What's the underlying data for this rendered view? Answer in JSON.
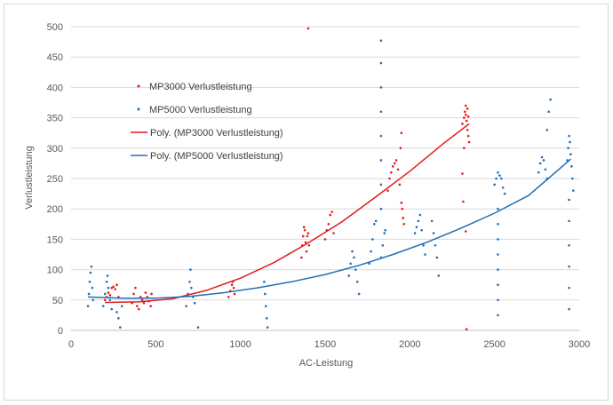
{
  "chart_data": {
    "type": "scatter",
    "title": "",
    "xlabel": "AC-Leistung",
    "ylabel": "Verlustleistung",
    "xlim": [
      0,
      3000
    ],
    "ylim": [
      0,
      500
    ],
    "xticks": [
      0,
      500,
      1000,
      1500,
      2000,
      2500,
      3000
    ],
    "yticks": [
      0,
      50,
      100,
      150,
      200,
      250,
      300,
      350,
      400,
      450,
      500
    ],
    "grid": "horizontal",
    "legend_position": "upper-left",
    "series": [
      {
        "name": "MP3000 Verlustleistung",
        "kind": "points",
        "color": "#e31a1c",
        "points": [
          [
            200,
            50
          ],
          [
            210,
            55
          ],
          [
            220,
            62
          ],
          [
            230,
            58
          ],
          [
            240,
            70
          ],
          [
            250,
            72
          ],
          [
            260,
            68
          ],
          [
            270,
            75
          ],
          [
            280,
            55
          ],
          [
            360,
            45
          ],
          [
            370,
            60
          ],
          [
            380,
            70
          ],
          [
            390,
            40
          ],
          [
            400,
            35
          ],
          [
            410,
            55
          ],
          [
            420,
            50
          ],
          [
            430,
            45
          ],
          [
            440,
            62
          ],
          [
            450,
            55
          ],
          [
            460,
            48
          ],
          [
            470,
            40
          ],
          [
            475,
            60
          ],
          [
            930,
            55
          ],
          [
            940,
            65
          ],
          [
            950,
            75
          ],
          [
            955,
            80
          ],
          [
            960,
            70
          ],
          [
            965,
            60
          ],
          [
            1360,
            120
          ],
          [
            1365,
            140
          ],
          [
            1370,
            155
          ],
          [
            1375,
            170
          ],
          [
            1380,
            165
          ],
          [
            1385,
            145
          ],
          [
            1390,
            130
          ],
          [
            1395,
            155
          ],
          [
            1400,
            160
          ],
          [
            1405,
            140
          ],
          [
            1400,
            497
          ],
          [
            1500,
            150
          ],
          [
            1510,
            165
          ],
          [
            1520,
            175
          ],
          [
            1530,
            190
          ],
          [
            1540,
            195
          ],
          [
            1550,
            160
          ],
          [
            1870,
            230
          ],
          [
            1880,
            250
          ],
          [
            1890,
            260
          ],
          [
            1900,
            270
          ],
          [
            1910,
            275
          ],
          [
            1920,
            280
          ],
          [
            1930,
            265
          ],
          [
            1940,
            240
          ],
          [
            1950,
            210
          ],
          [
            1955,
            200
          ],
          [
            1960,
            185
          ],
          [
            1965,
            175
          ],
          [
            1950,
            325
          ],
          [
            1945,
            300
          ],
          [
            2310,
            340
          ],
          [
            2320,
            350
          ],
          [
            2325,
            360
          ],
          [
            2330,
            355
          ],
          [
            2335,
            345
          ],
          [
            2340,
            330
          ],
          [
            2345,
            320
          ],
          [
            2350,
            310
          ],
          [
            2320,
            300
          ],
          [
            2330,
            370
          ],
          [
            2340,
            365
          ],
          [
            2345,
            352
          ],
          [
            2310,
            258
          ],
          [
            2315,
            212
          ],
          [
            2330,
            163
          ],
          [
            2335,
            2
          ]
        ]
      },
      {
        "name": "MP5000 Verlustleistung",
        "kind": "points",
        "color": "#1f6fb8",
        "points": [
          [
            100,
            40
          ],
          [
            105,
            60
          ],
          [
            110,
            80
          ],
          [
            115,
            95
          ],
          [
            120,
            105
          ],
          [
            125,
            70
          ],
          [
            130,
            50
          ],
          [
            190,
            40
          ],
          [
            200,
            60
          ],
          [
            210,
            80
          ],
          [
            215,
            90
          ],
          [
            220,
            70
          ],
          [
            230,
            50
          ],
          [
            240,
            35
          ],
          [
            270,
            30
          ],
          [
            280,
            20
          ],
          [
            290,
            5
          ],
          [
            300,
            40
          ],
          [
            680,
            40
          ],
          [
            690,
            60
          ],
          [
            700,
            80
          ],
          [
            705,
            100
          ],
          [
            710,
            70
          ],
          [
            720,
            55
          ],
          [
            730,
            45
          ],
          [
            750,
            5
          ],
          [
            1140,
            80
          ],
          [
            1145,
            60
          ],
          [
            1150,
            40
          ],
          [
            1155,
            20
          ],
          [
            1160,
            5
          ],
          [
            1640,
            90
          ],
          [
            1650,
            110
          ],
          [
            1660,
            130
          ],
          [
            1670,
            120
          ],
          [
            1680,
            100
          ],
          [
            1690,
            80
          ],
          [
            1700,
            60
          ],
          [
            1760,
            110
          ],
          [
            1770,
            130
          ],
          [
            1780,
            150
          ],
          [
            1790,
            175
          ],
          [
            1800,
            180
          ],
          [
            1830,
            120
          ],
          [
            1840,
            140
          ],
          [
            1850,
            160
          ],
          [
            1855,
            165
          ],
          [
            1830,
            477
          ],
          [
            1830,
            440
          ],
          [
            1830,
            400
          ],
          [
            1830,
            360
          ],
          [
            1830,
            320
          ],
          [
            1830,
            280
          ],
          [
            1830,
            240
          ],
          [
            1830,
            200
          ],
          [
            2030,
            160
          ],
          [
            2040,
            170
          ],
          [
            2050,
            180
          ],
          [
            2060,
            190
          ],
          [
            2070,
            165
          ],
          [
            2080,
            140
          ],
          [
            2090,
            125
          ],
          [
            2130,
            180
          ],
          [
            2140,
            160
          ],
          [
            2150,
            140
          ],
          [
            2160,
            120
          ],
          [
            2170,
            90
          ],
          [
            2500,
            240
          ],
          [
            2510,
            250
          ],
          [
            2520,
            260
          ],
          [
            2530,
            255
          ],
          [
            2540,
            250
          ],
          [
            2550,
            235
          ],
          [
            2560,
            225
          ],
          [
            2520,
            200
          ],
          [
            2520,
            175
          ],
          [
            2520,
            150
          ],
          [
            2520,
            125
          ],
          [
            2520,
            100
          ],
          [
            2520,
            75
          ],
          [
            2520,
            50
          ],
          [
            2520,
            25
          ],
          [
            2760,
            260
          ],
          [
            2770,
            275
          ],
          [
            2780,
            285
          ],
          [
            2790,
            280
          ],
          [
            2800,
            265
          ],
          [
            2810,
            250
          ],
          [
            2830,
            380
          ],
          [
            2820,
            360
          ],
          [
            2810,
            330
          ],
          [
            2930,
            280
          ],
          [
            2935,
            300
          ],
          [
            2940,
            320
          ],
          [
            2945,
            310
          ],
          [
            2950,
            290
          ],
          [
            2955,
            270
          ],
          [
            2960,
            250
          ],
          [
            2965,
            230
          ],
          [
            2940,
            215
          ],
          [
            2940,
            180
          ],
          [
            2940,
            140
          ],
          [
            2940,
            105
          ],
          [
            2940,
            70
          ],
          [
            2940,
            35
          ]
        ]
      },
      {
        "name": "Poly. (MP3000 Verlustleistung)",
        "kind": "trendline",
        "color": "#e31a1c",
        "x": [
          200,
          400,
          600,
          800,
          1000,
          1200,
          1400,
          1600,
          1800,
          2000,
          2200,
          2350
        ],
        "y": [
          46,
          47,
          52,
          66,
          86,
          112,
          144,
          179,
          220,
          262,
          308,
          340
        ]
      },
      {
        "name": "Poly. (MP5000 Verlustleistung)",
        "kind": "trendline",
        "color": "#1f6fb8",
        "x": [
          100,
          300,
          500,
          700,
          900,
          1100,
          1300,
          1500,
          1700,
          1900,
          2100,
          2300,
          2500,
          2700,
          2950
        ],
        "y": [
          55,
          53,
          53,
          56,
          62,
          70,
          80,
          92,
          107,
          125,
          145,
          168,
          193,
          222,
          282
        ]
      }
    ]
  }
}
